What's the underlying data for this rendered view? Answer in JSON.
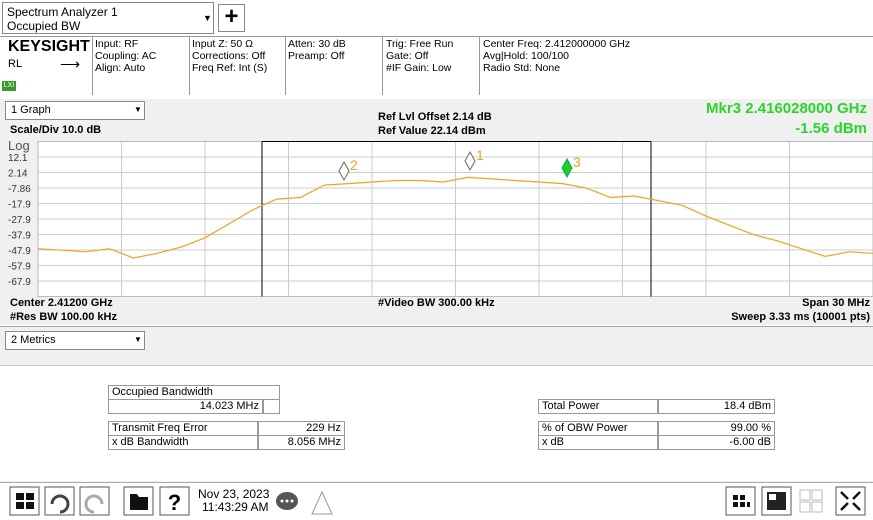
{
  "header": {
    "window_title": "Spectrum Analyzer 1",
    "measurement": "Occupied BW"
  },
  "status": {
    "brand": "KEYSIGHT",
    "rl": "RL",
    "lxi": "LXI",
    "columns": [
      [
        "Input: RF",
        "Coupling: AC",
        "Align: Auto"
      ],
      [
        "Input Z: 50 Ω",
        "Corrections: Off",
        "Freq Ref: Int (S)"
      ],
      [
        "Atten: 30 dB",
        "Preamp: Off"
      ],
      [
        "Trig: Free Run",
        "Gate: Off",
        "#IF Gain: Low"
      ],
      [
        "Center Freq: 2.412000000 GHz",
        "Avg|Hold: 100/100",
        "Radio Std: None"
      ]
    ]
  },
  "graph": {
    "selector": "1 Graph",
    "scale": "Scale/Div 10.0 dB",
    "scale_type": "Log",
    "ref_offset": "Ref Lvl Offset 2.14 dB",
    "ref_value": "Ref Value 22.14 dBm",
    "marker_freq": "Mkr3  2.416028000 GHz",
    "marker_amp": "-1.56 dBm",
    "ylim": [
      -77.86,
      22.14
    ],
    "yticks": [
      12.1,
      2.14,
      -7.86,
      -17.9,
      -27.9,
      -37.9,
      -47.9,
      -57.9,
      -67.9
    ],
    "markers": [
      "1",
      "2",
      "3"
    ],
    "trace": {
      "color": "#f2a31b",
      "values": [
        -47,
        -48,
        -49,
        -47,
        -53,
        -50,
        -46,
        -40,
        -31,
        -22,
        -15,
        -14,
        -6,
        -5,
        -4,
        -3,
        -3,
        -4,
        -1,
        -2,
        -3,
        -4,
        -5,
        -8,
        -14,
        -13,
        -16,
        -19,
        -26,
        -32,
        -38,
        -42,
        -47,
        -52,
        -49,
        -50
      ]
    },
    "footer_left": [
      "Center 2.41200 GHz",
      "#Res BW 100.00 kHz"
    ],
    "footer_center": "#Video BW 300.00 kHz",
    "footer_right": [
      "Span 30 MHz",
      "Sweep 3.33 ms (10001 pts)"
    ]
  },
  "metrics": {
    "selector": "2 Metrics",
    "occupied_bw": {
      "label": "Occupied Bandwidth",
      "value": "14.023 MHz"
    },
    "left_rows": [
      [
        "Transmit Freq Error",
        "229 Hz"
      ],
      [
        "x dB Bandwidth",
        "8.056 MHz"
      ]
    ],
    "right_rows": [
      [
        "Total Power",
        "18.4 dBm"
      ],
      [
        "% of OBW Power",
        "99.00 %"
      ],
      [
        "x dB",
        "-6.00 dB"
      ]
    ]
  },
  "taskbar": {
    "date": "Nov 23, 2023",
    "time": "11:43:29 AM"
  }
}
